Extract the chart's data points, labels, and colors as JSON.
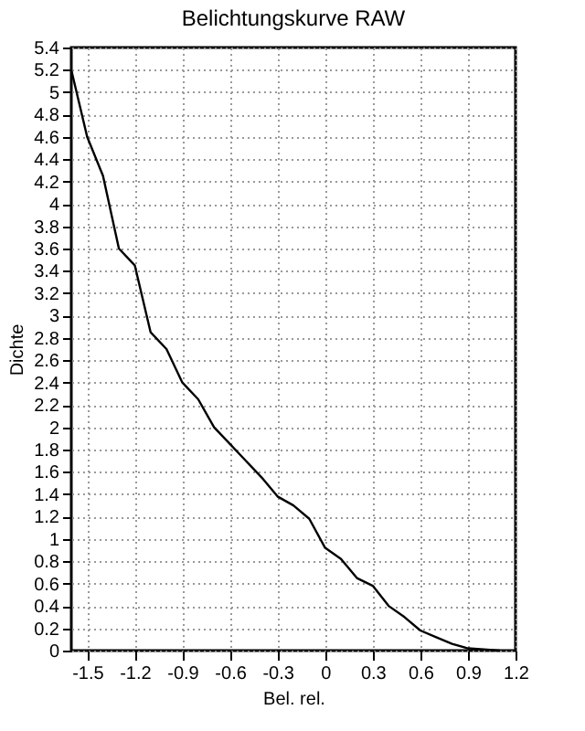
{
  "chart_data": {
    "type": "line",
    "title": "Belichtungskurve RAW",
    "xlabel": "Bel. rel.",
    "ylabel": "Dichte",
    "x": [
      -1.6,
      -1.5,
      -1.4,
      -1.3,
      -1.2,
      -1.1,
      -1.0,
      -0.9,
      -0.8,
      -0.7,
      -0.6,
      -0.5,
      -0.4,
      -0.3,
      -0.2,
      -0.1,
      0,
      0.1,
      0.2,
      0.3,
      0.4,
      0.5,
      0.6,
      0.7,
      0.8,
      0.9,
      1.0,
      1.1
    ],
    "series": [
      {
        "color": "#000000",
        "values": [
          5.2,
          4.6,
          4.25,
          3.6,
          3.45,
          2.85,
          2.7,
          2.4,
          2.25,
          2.0,
          1.85,
          1.7,
          1.55,
          1.38,
          1.3,
          1.18,
          0.92,
          0.82,
          0.65,
          0.58,
          0.4,
          0.3,
          0.18,
          0.12,
          0.06,
          0.02,
          0.01,
          0.0
        ]
      }
    ],
    "xlim": [
      -1.6,
      1.2
    ],
    "xticks": [
      -1.5,
      -1.2,
      -0.9,
      -0.6,
      -0.3,
      0,
      0.3,
      0.6,
      0.9,
      1.2
    ],
    "ylim": [
      0,
      5.4
    ],
    "yticks": [
      0,
      0.2,
      0.4,
      0.6,
      0.8,
      1,
      1.2,
      1.4,
      1.6,
      1.8,
      2,
      2.2,
      2.4,
      2.6,
      2.8,
      3,
      3.2,
      3.4,
      3.6,
      3.8,
      4,
      4.2,
      4.4,
      4.6,
      4.8,
      5,
      5.2,
      5.4
    ],
    "grid": true,
    "line_style": "solid",
    "legend": false
  }
}
